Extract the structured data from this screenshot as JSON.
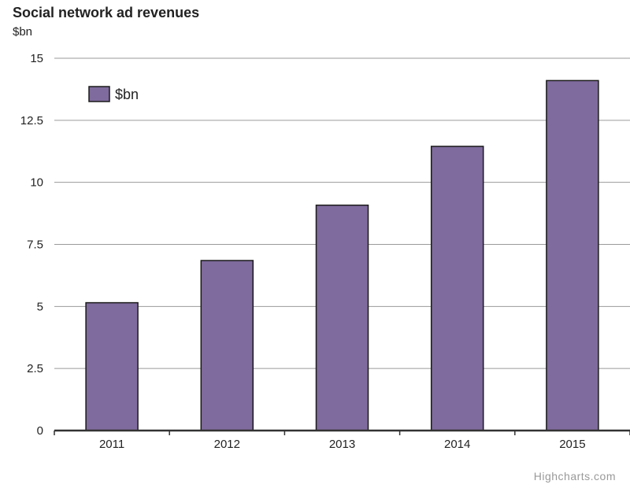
{
  "chart_data": {
    "type": "bar",
    "title": "Social network ad revenues",
    "subtitle": "$bn",
    "categories": [
      "2011",
      "2012",
      "2013",
      "2014",
      "2015"
    ],
    "series": [
      {
        "name": "$bn",
        "values": [
          5.15,
          6.85,
          9.08,
          11.45,
          14.1
        ],
        "color": "#7f6b9d"
      }
    ],
    "ylim": [
      0,
      15
    ],
    "yticks": [
      0,
      2.5,
      5,
      7.5,
      10,
      12.5,
      15
    ],
    "ytick_labels": [
      "0",
      "2.5",
      "5",
      "7.5",
      "10",
      "12.5",
      "15"
    ],
    "grid": true,
    "legend": "top-left"
  },
  "credits": "Highcharts.com"
}
